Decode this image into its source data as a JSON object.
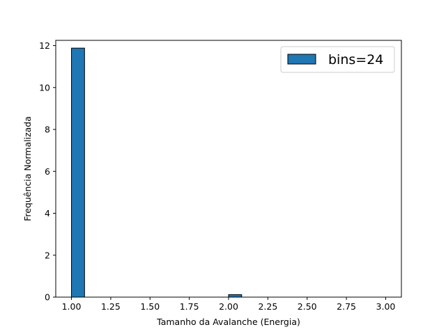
{
  "chart_data": {
    "type": "bar",
    "subtype": "histogram",
    "xlabel": "Tamanho da Avalanche (Energia)",
    "ylabel": "Frequência Normalizada",
    "xlim": [
      0.9,
      3.1
    ],
    "ylim": [
      0,
      12.25
    ],
    "x_ticks": [
      "1.00",
      "1.25",
      "1.50",
      "1.75",
      "2.00",
      "2.25",
      "2.50",
      "2.75",
      "3.00"
    ],
    "x_tick_values": [
      1.0,
      1.25,
      1.5,
      1.75,
      2.0,
      2.25,
      2.5,
      2.75,
      3.0
    ],
    "y_ticks": [
      "0",
      "2",
      "4",
      "6",
      "8",
      "10",
      "12"
    ],
    "y_tick_values": [
      0,
      2,
      4,
      6,
      8,
      10,
      12
    ],
    "bin_range": [
      1.0,
      3.0
    ],
    "bins": 24,
    "values": [
      11.88,
      0,
      0,
      0,
      0,
      0,
      0,
      0,
      0,
      0,
      0,
      0,
      0.12,
      0,
      0,
      0,
      0,
      0,
      0,
      0,
      0,
      0,
      0,
      0
    ],
    "series": [
      {
        "name": "bins=24"
      }
    ],
    "legend_position": "top-right",
    "bar_color": "#1f77b4",
    "edge_color": "#000000",
    "grid": false
  }
}
